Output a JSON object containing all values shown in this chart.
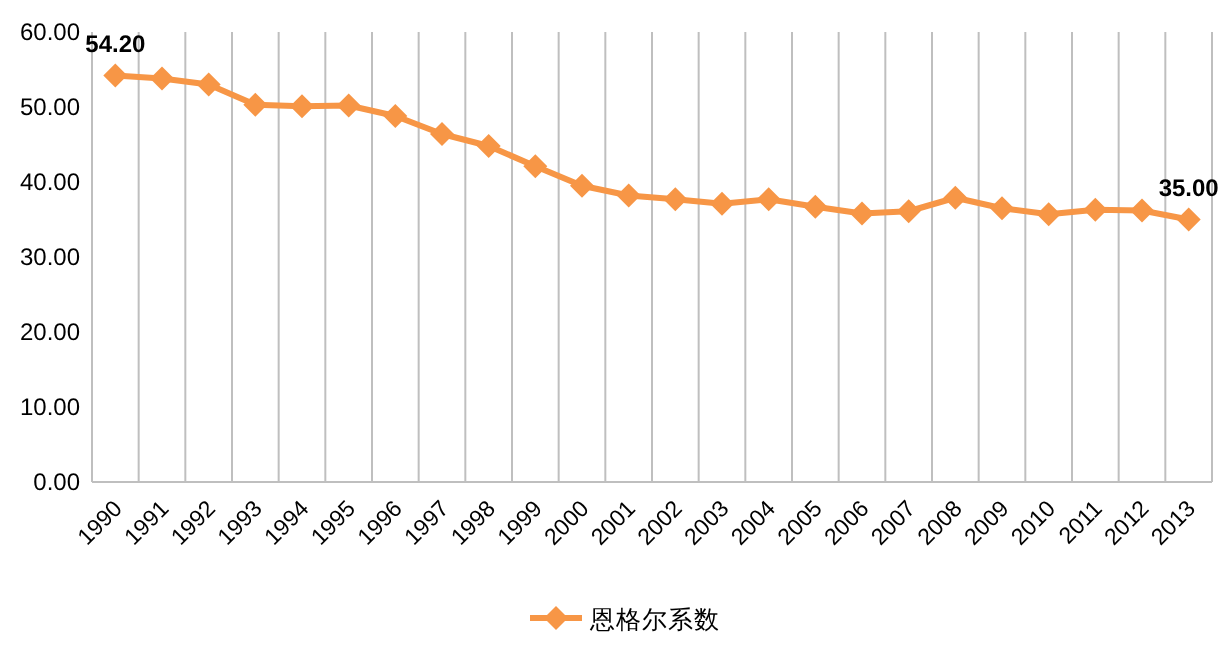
{
  "chart_data": {
    "type": "line",
    "categories": [
      "1990",
      "1991",
      "1992",
      "1993",
      "1994",
      "1995",
      "1996",
      "1997",
      "1998",
      "1999",
      "2000",
      "2001",
      "2002",
      "2003",
      "2004",
      "2005",
      "2006",
      "2007",
      "2008",
      "2009",
      "2010",
      "2011",
      "2012",
      "2013"
    ],
    "series": [
      {
        "name": "恩格尔系数",
        "color": "#f79646",
        "values": [
          54.2,
          53.8,
          53.0,
          50.3,
          50.1,
          50.2,
          48.8,
          46.4,
          44.8,
          42.1,
          39.5,
          38.2,
          37.7,
          37.1,
          37.7,
          36.7,
          35.8,
          36.1,
          37.9,
          36.5,
          35.7,
          36.3,
          36.2,
          35.0
        ],
        "value_labels": [
          "54.20",
          null,
          null,
          null,
          null,
          null,
          null,
          null,
          null,
          null,
          null,
          null,
          null,
          null,
          null,
          null,
          null,
          null,
          null,
          null,
          null,
          null,
          null,
          "35.00"
        ]
      }
    ],
    "ylim": [
      0,
      60
    ],
    "yticks": [
      {
        "value": 0,
        "label": "0.00"
      },
      {
        "value": 10,
        "label": "10.00"
      },
      {
        "value": 20,
        "label": "20.00"
      },
      {
        "value": 30,
        "label": "30.00"
      },
      {
        "value": 40,
        "label": "40.00"
      },
      {
        "value": 50,
        "label": "50.00"
      },
      {
        "value": 60,
        "label": "60.00"
      }
    ],
    "grid": "x",
    "legend": "bottom",
    "marker": "diamond",
    "line_style": "solid"
  }
}
